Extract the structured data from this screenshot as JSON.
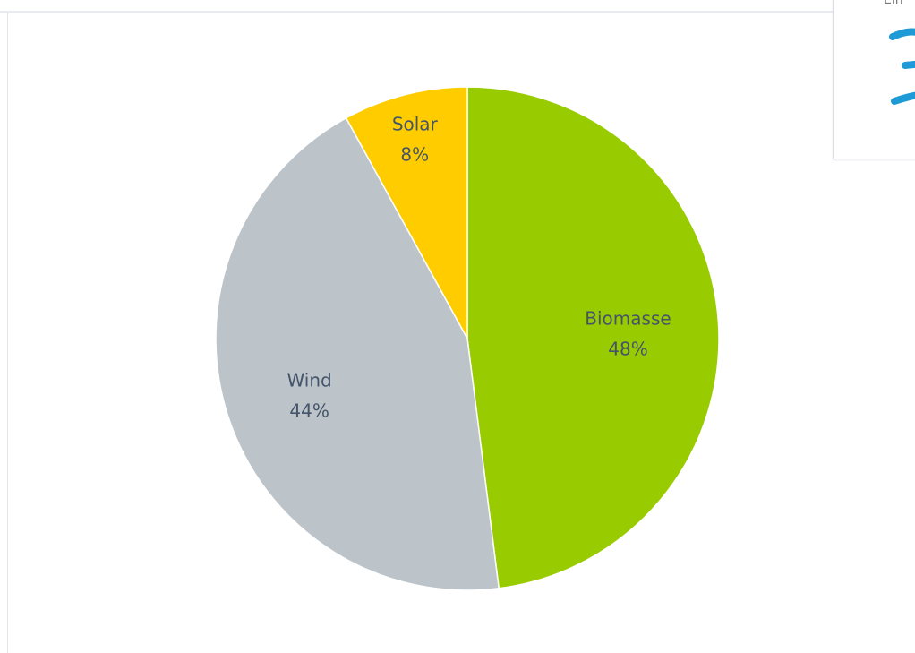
{
  "colors": {
    "biomasse": "#99cc00",
    "wind": "#bcc4ca",
    "solar": "#ffcc00",
    "label": "#44546a",
    "side_accent": "#1e9ad6"
  },
  "side_card": {
    "partial_text": "Ein"
  },
  "chart_data": {
    "type": "pie",
    "title": "",
    "slices": [
      {
        "label": "Biomasse",
        "value": 48,
        "value_label": "48%",
        "color": "#99cc00"
      },
      {
        "label": "Wind",
        "value": 44,
        "value_label": "44%",
        "color": "#bcc4ca"
      },
      {
        "label": "Solar",
        "value": 8,
        "value_label": "8%",
        "color": "#ffcc00"
      }
    ],
    "start_angle_deg": 0,
    "direction": "clockwise",
    "legend": "none",
    "data_labels": "category and percent inside slices"
  }
}
